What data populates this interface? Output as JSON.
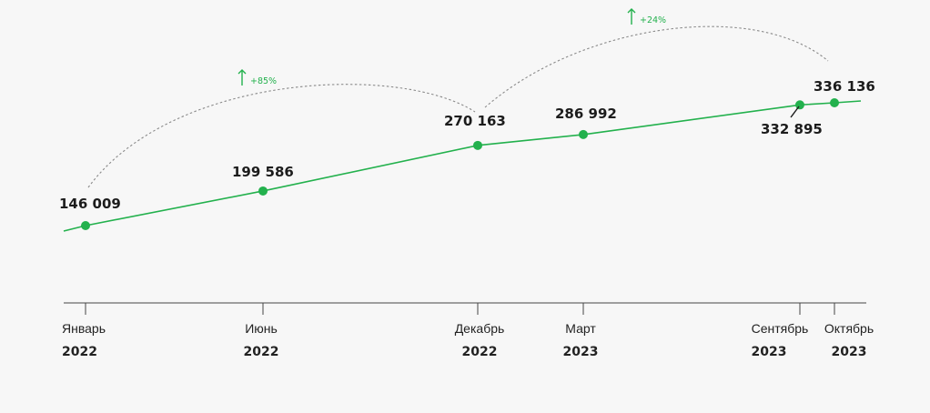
{
  "chart_data": {
    "type": "line",
    "categories": [
      {
        "month": "Январь",
        "year": "2022"
      },
      {
        "month": "Июнь",
        "year": "2022"
      },
      {
        "month": "Декабрь",
        "year": "2022"
      },
      {
        "month": "Март",
        "year": "2023"
      },
      {
        "month": "Сентябрь",
        "year": "2023"
      },
      {
        "month": "Октябрь",
        "year": "2023"
      }
    ],
    "values": [
      146009,
      199586,
      270163,
      286992,
      332895,
      336136
    ],
    "value_labels": [
      "146 009",
      "199 586",
      "270 163",
      "286 992",
      "332 895",
      "336 136"
    ],
    "annotations": [
      {
        "from": "Январь 2022",
        "to": "Декабрь 2022",
        "label": "+85%"
      },
      {
        "from": "Декабрь 2022",
        "to": "Октябрь 2023",
        "label": "+24%"
      }
    ],
    "grid": false,
    "colors": {
      "line": "#23b14d",
      "arc": "#8a8a8a",
      "axis": "#444444"
    }
  }
}
